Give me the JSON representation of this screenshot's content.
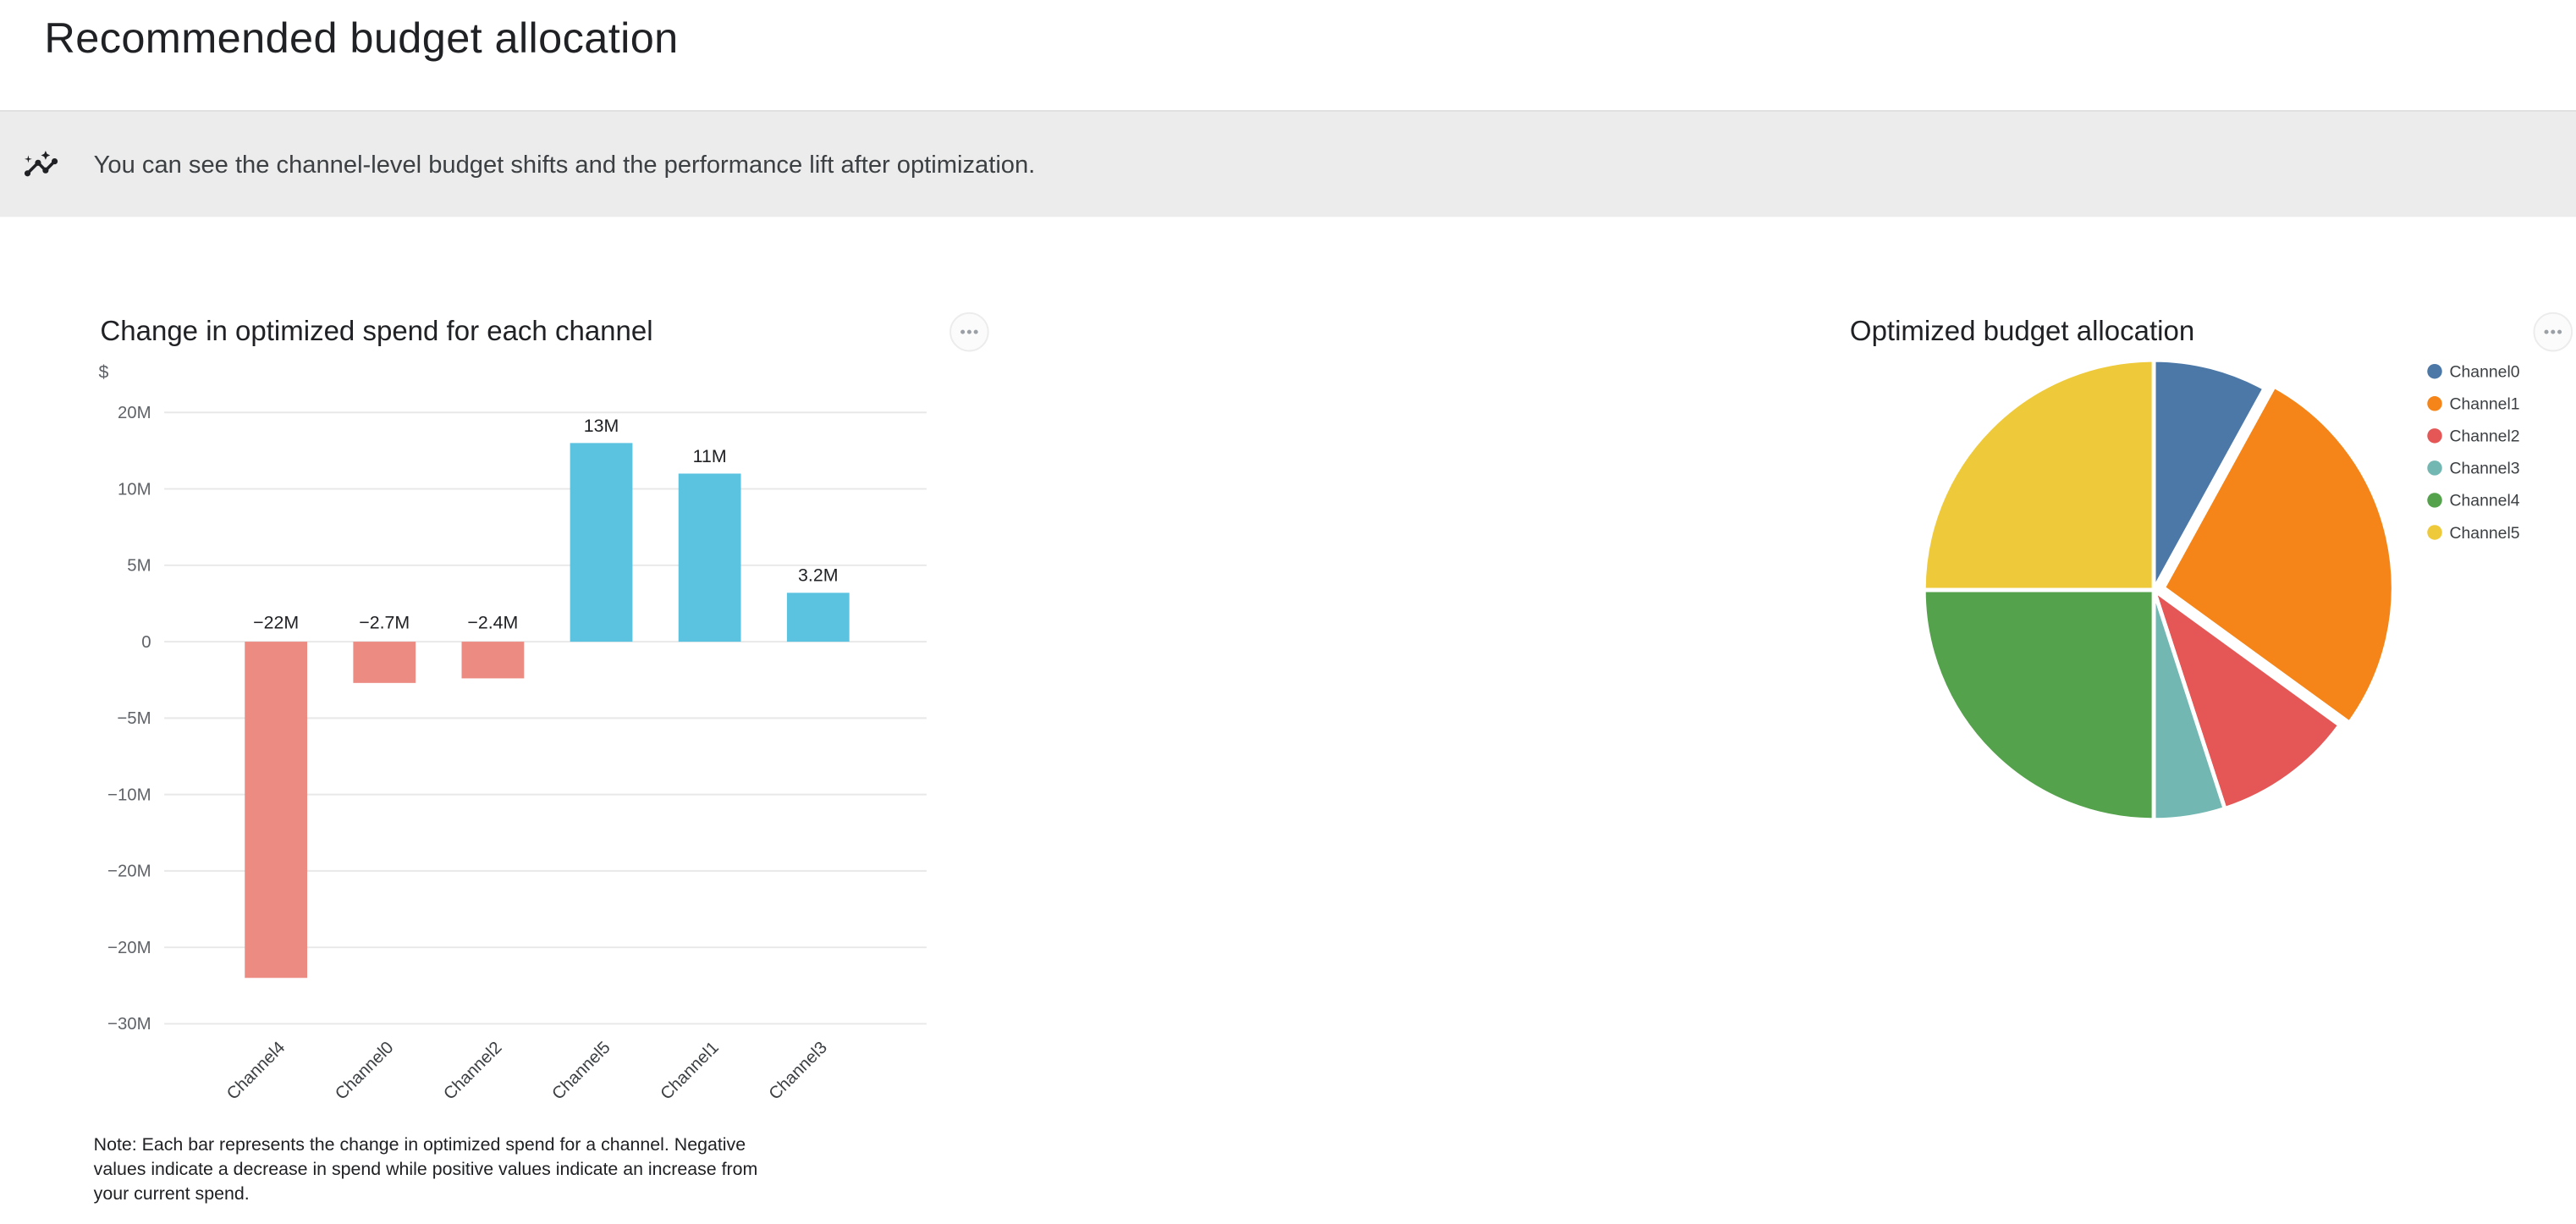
{
  "header": {
    "title": "Recommended budget allocation"
  },
  "banner": {
    "icon": "insights-icon",
    "text": "You can see the channel-level budget shifts and the performance lift after optimization."
  },
  "spend_chart": {
    "title": "Change in optimized spend for each channel",
    "more_options_label": "more options",
    "note": "Note: Each bar represents the change in optimized spend for a channel. Negative values indicate a decrease in spend while positive values indicate an increase from your current spend."
  },
  "allocation_chart": {
    "title": "Optimized budget allocation",
    "more_options_label": "more options"
  },
  "chart_data": [
    {
      "type": "bar",
      "title": "Change in optimized spend for each channel",
      "ylabel": "$",
      "categories": [
        "Channel4",
        "Channel0",
        "Channel2",
        "Channel5",
        "Channel1",
        "Channel3"
      ],
      "values_millions": [
        -22,
        -2.7,
        -2.4,
        13,
        11,
        3.2
      ],
      "value_labels": [
        "−22M",
        "−2.7M",
        "−2.4M",
        "13M",
        "11M",
        "3.2M"
      ],
      "y_tick_labels": [
        "20M",
        "10M",
        "5M",
        "0",
        "−5M",
        "−10M",
        "−20M",
        "−20M",
        "−30M"
      ],
      "zero_tick_index": 3,
      "units_per_tick_millions": 5,
      "grid": true,
      "negative_color": "#ec8b82",
      "positive_color": "#5bc3e0",
      "label_color": "#202124",
      "axis_color": "#5f6368",
      "grid_color": "#e8e8e8"
    },
    {
      "type": "pie",
      "title": "Optimized budget allocation",
      "labels": [
        "Channel0",
        "Channel1",
        "Channel2",
        "Channel3",
        "Channel4",
        "Channel5"
      ],
      "values_percent": [
        8,
        27,
        10,
        5,
        25,
        25
      ],
      "colors": [
        "#4c78a8",
        "#f58518",
        "#e45756",
        "#72b7b2",
        "#54a24b",
        "#eeca3b"
      ],
      "legend_position": "right",
      "start_angle": "top",
      "direction": "clockwise",
      "exploded_slice": "Channel1",
      "legend_text_color": "#3c4043"
    }
  ]
}
